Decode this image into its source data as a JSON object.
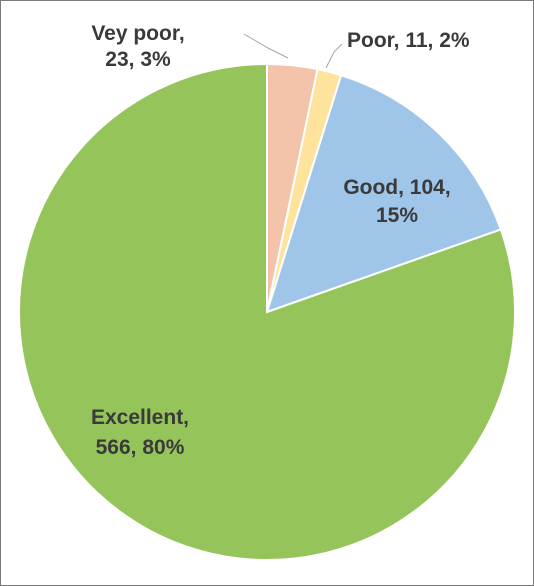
{
  "chart_data": {
    "type": "pie",
    "title": "",
    "legend": "none",
    "slices": [
      {
        "label": "Vey poor",
        "value": 23,
        "percent": "3%",
        "color": "#f4c4aa"
      },
      {
        "label": "Poor",
        "value": 11,
        "percent": "2%",
        "color": "#fde39b"
      },
      {
        "label": "Good",
        "value": 104,
        "percent": "15%",
        "color": "#9fc5e8"
      },
      {
        "label": "Excellent",
        "value": 566,
        "percent": "80%",
        "color": "#94c45a"
      }
    ],
    "data_labels": [
      {
        "line1": "Vey poor,",
        "line2": "23, 3%"
      },
      {
        "line1": "Poor, 11, 2%",
        "line2": ""
      },
      {
        "line1": "Good, 104,",
        "line2": "15%"
      },
      {
        "line1": "Excellent,",
        "line2": "566, 80%"
      }
    ]
  }
}
